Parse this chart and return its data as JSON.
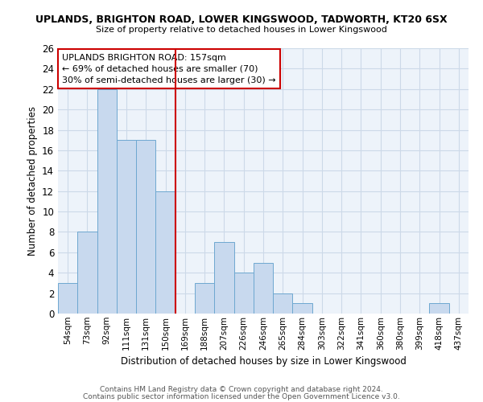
{
  "title": "UPLANDS, BRIGHTON ROAD, LOWER KINGSWOOD, TADWORTH, KT20 6SX",
  "subtitle": "Size of property relative to detached houses in Lower Kingswood",
  "xlabel": "Distribution of detached houses by size in Lower Kingswood",
  "ylabel": "Number of detached properties",
  "bar_labels": [
    "54sqm",
    "73sqm",
    "92sqm",
    "111sqm",
    "131sqm",
    "150sqm",
    "169sqm",
    "188sqm",
    "207sqm",
    "226sqm",
    "246sqm",
    "265sqm",
    "284sqm",
    "303sqm",
    "322sqm",
    "341sqm",
    "360sqm",
    "380sqm",
    "399sqm",
    "418sqm",
    "437sqm"
  ],
  "bar_values": [
    3,
    8,
    22,
    17,
    17,
    12,
    0,
    3,
    7,
    4,
    5,
    2,
    1,
    0,
    0,
    0,
    0,
    0,
    0,
    1,
    0
  ],
  "bar_color": "#c8d9ee",
  "bar_edge_color": "#6ea8d0",
  "vline_x": 5.5,
  "vline_color": "#cc0000",
  "annotation_title": "UPLANDS BRIGHTON ROAD: 157sqm",
  "annotation_line1": "← 69% of detached houses are smaller (70)",
  "annotation_line2": "30% of semi-detached houses are larger (30) →",
  "annotation_box_color": "#ffffff",
  "annotation_box_edge": "#cc0000",
  "ylim": [
    0,
    26
  ],
  "yticks": [
    0,
    2,
    4,
    6,
    8,
    10,
    12,
    14,
    16,
    18,
    20,
    22,
    24,
    26
  ],
  "footer1": "Contains HM Land Registry data © Crown copyright and database right 2024.",
  "footer2": "Contains public sector information licensed under the Open Government Licence v3.0.",
  "bg_color": "#ffffff",
  "grid_color": "#ccd9e8"
}
